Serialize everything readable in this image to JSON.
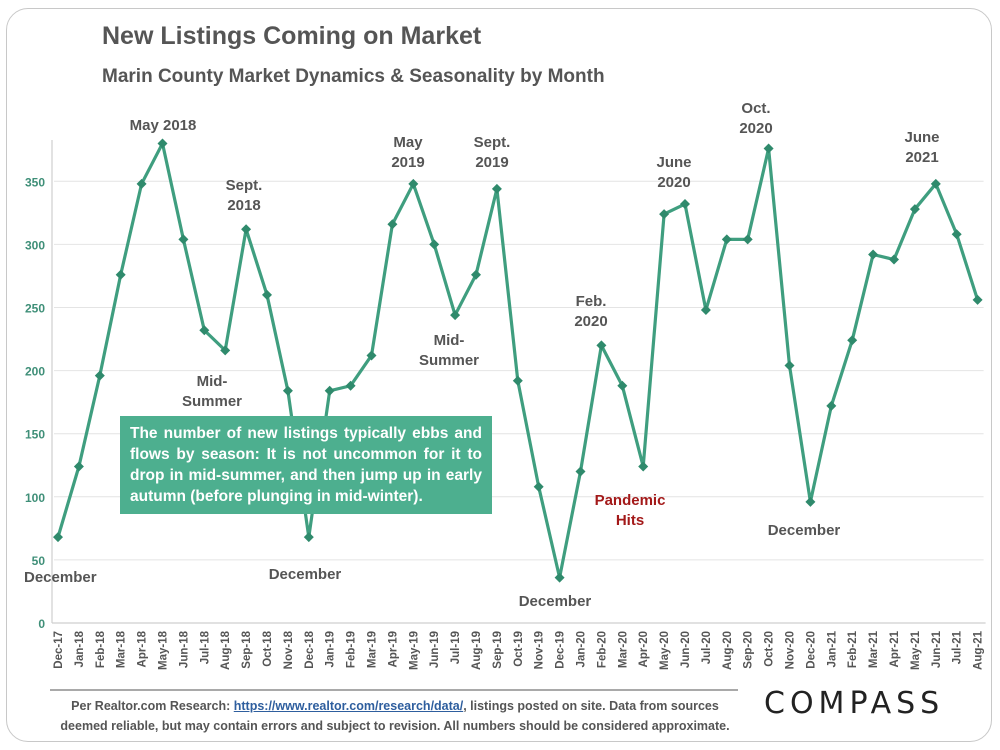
{
  "title": "New Listings Coming on Market",
  "subtitle": "Marin County Market Dynamics & Seasonality by Month",
  "callout": "The number of new listings typically ebbs and flows by season: It is not uncommon for it to drop in mid-summer, and then jump up in early autumn (before plunging  in mid-winter).",
  "footer": {
    "prefix": "Per Realtor.com Research:  ",
    "link": "https://www.realtor.com/research/data/",
    "suffix": ", listings posted on site. Data from sources deemed reliable, but may contain errors and subject to revision. All numbers should be considered approximate."
  },
  "logo": "COMPASS",
  "colors": {
    "line": "#3f9e7f",
    "text": "#555555",
    "callout_bg": "#4daf8f",
    "pandemic": "#a31919",
    "grid": "#e4e4e4"
  },
  "chart_data": {
    "type": "line",
    "title": "New Listings Coming on Market",
    "xlabel": "",
    "ylabel": "",
    "ylim": [
      0,
      375
    ],
    "yticks": [
      0,
      50,
      100,
      150,
      200,
      250,
      300,
      350
    ],
    "grid": true,
    "categories": [
      "Dec-17",
      "Jan-18",
      "Feb-18",
      "Mar-18",
      "Apr-18",
      "May-18",
      "Jun-18",
      "Jul-18",
      "Aug-18",
      "Sep-18",
      "Oct-18",
      "Nov-18",
      "Dec-18",
      "Jan-19",
      "Feb-19",
      "Mar-19",
      "Apr-19",
      "May-19",
      "Jun-19",
      "Jul-19",
      "Aug-19",
      "Sep-19",
      "Oct-19",
      "Nov-19",
      "Dec-19",
      "Jan-20",
      "Feb-20",
      "Mar-20",
      "Apr-20",
      "May-20",
      "Jun-20",
      "Jul-20",
      "Aug-20",
      "Sep-20",
      "Oct-20",
      "Nov-20",
      "Dec-20",
      "Jan-21",
      "Feb-21",
      "Mar-21",
      "Apr-21",
      "May-21",
      "Jun-21",
      "Jul-21",
      "Aug-21"
    ],
    "series": [
      {
        "name": "New Listings",
        "values": [
          68,
          124,
          196,
          276,
          348,
          380,
          304,
          232,
          216,
          312,
          260,
          184,
          68,
          184,
          188,
          212,
          316,
          348,
          300,
          244,
          276,
          344,
          192,
          108,
          36,
          120,
          220,
          188,
          124,
          324,
          332,
          248,
          304,
          304,
          376,
          204,
          96,
          172,
          224,
          292,
          288,
          328,
          348,
          308,
          256
        ]
      }
    ],
    "annotations": [
      {
        "label": "December",
        "index": 0
      },
      {
        "label": "May 2018",
        "index": 5
      },
      {
        "label": "Sept.\n2018",
        "index": 9
      },
      {
        "label": "Mid-\nSummer",
        "index": 8
      },
      {
        "label": "December",
        "index": 12
      },
      {
        "label": "May\n2019",
        "index": 17
      },
      {
        "label": "Sept.\n2019",
        "index": 21
      },
      {
        "label": "Mid-\nSummer",
        "index": 19
      },
      {
        "label": "December",
        "index": 24
      },
      {
        "label": "Feb.\n2020",
        "index": 26
      },
      {
        "label": "Pandemic\nHits",
        "index": 28
      },
      {
        "label": "June\n2020",
        "index": 30
      },
      {
        "label": "Oct.\n2020",
        "index": 34
      },
      {
        "label": "December",
        "index": 36
      },
      {
        "label": "June\n2021",
        "index": 42
      }
    ]
  }
}
